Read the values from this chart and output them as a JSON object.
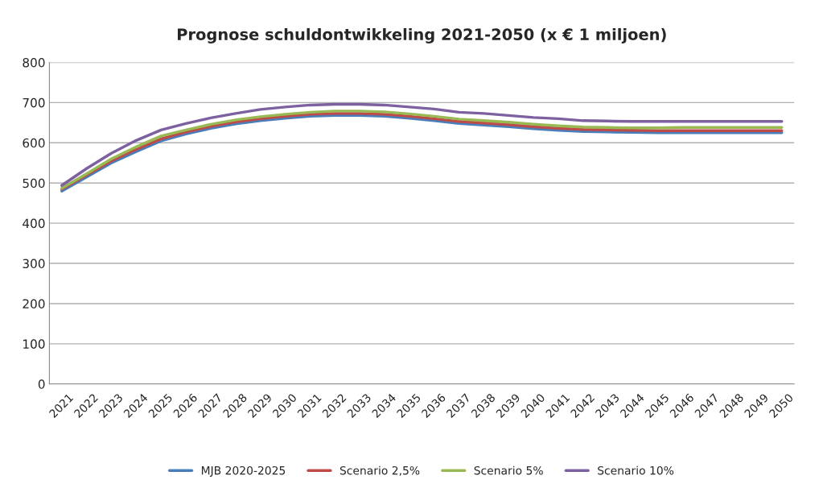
{
  "chart_data": {
    "type": "line",
    "title": "Prognose schuldontwikkeling 2021-2050 (x € 1 miljoen)",
    "categories": [
      "2021",
      "2022",
      "2023",
      "2024",
      "2025",
      "2026",
      "2027",
      "2028",
      "2029",
      "2030",
      "2031",
      "2032",
      "2033",
      "2034",
      "2035",
      "2036",
      "2037",
      "2038",
      "2039",
      "2040",
      "2041",
      "2042",
      "2043",
      "2044",
      "2045",
      "2046",
      "2047",
      "2048",
      "2049",
      "2050"
    ],
    "series": [
      {
        "name": "MJB 2020-2025",
        "color": "#4a7ebb",
        "values": [
          480,
          515,
          550,
          578,
          605,
          622,
          636,
          647,
          655,
          661,
          666,
          668,
          668,
          666,
          661,
          655,
          648,
          644,
          640,
          635,
          631,
          628,
          627,
          626,
          625,
          625,
          625,
          625,
          625,
          625
        ]
      },
      {
        "name": "Scenario 2,5%",
        "color": "#be4b48",
        "values": [
          485,
          520,
          555,
          584,
          610,
          627,
          641,
          652,
          660,
          666,
          671,
          673,
          673,
          671,
          666,
          660,
          653,
          649,
          645,
          640,
          636,
          633,
          632,
          631,
          630,
          630,
          630,
          630,
          630,
          630
        ]
      },
      {
        "name": "Scenario 5%",
        "color": "#98b954",
        "values": [
          487,
          523,
          560,
          590,
          617,
          632,
          646,
          657,
          665,
          671,
          676,
          679,
          679,
          677,
          672,
          666,
          659,
          655,
          651,
          646,
          642,
          639,
          638,
          637,
          637,
          638,
          638,
          638,
          638,
          638
        ]
      },
      {
        "name": "Scenario 10%",
        "color": "#7d60a0",
        "values": [
          494,
          536,
          574,
          606,
          632,
          648,
          662,
          673,
          683,
          689,
          694,
          696,
          696,
          694,
          689,
          684,
          676,
          673,
          668,
          663,
          660,
          655,
          654,
          653,
          653,
          653,
          653,
          653,
          653,
          653
        ]
      }
    ],
    "ylim": [
      0,
      800
    ],
    "yticks": [
      0,
      100,
      200,
      300,
      400,
      500,
      600,
      700,
      800
    ],
    "grid": "y",
    "legend": "bottom",
    "marker": "none",
    "line_style": "solid"
  }
}
